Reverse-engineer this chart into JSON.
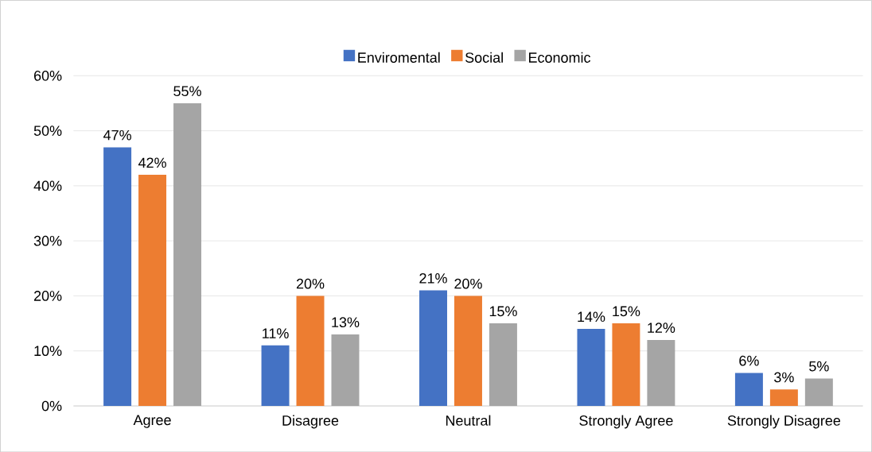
{
  "chart_data": {
    "type": "bar",
    "categories": [
      "Agree",
      "Disagree",
      "Neutral",
      "Strongly Agree",
      "Strongly Disagree"
    ],
    "series": [
      {
        "name": "Enviromental",
        "color": "#4472c4",
        "values": [
          47,
          11,
          21,
          14,
          6
        ],
        "value_labels": [
          "47%",
          "11%",
          "21%",
          "14%",
          "6%"
        ]
      },
      {
        "name": "Social",
        "color": "#ed7d31",
        "values": [
          42,
          20,
          20,
          15,
          3
        ],
        "value_labels": [
          "42%",
          "20%",
          "20%",
          "15%",
          "3%"
        ]
      },
      {
        "name": "Economic",
        "color": "#a5a5a5",
        "values": [
          55,
          13,
          15,
          12,
          5
        ],
        "value_labels": [
          "55%",
          "13%",
          "15%",
          "12%",
          "5%"
        ]
      }
    ],
    "ylim": [
      0,
      60
    ],
    "yticks": [
      {
        "value": 0,
        "label": "0%"
      },
      {
        "value": 10,
        "label": "10%"
      },
      {
        "value": 20,
        "label": "20%"
      },
      {
        "value": 30,
        "label": "30%"
      },
      {
        "value": 40,
        "label": "40%"
      },
      {
        "value": 50,
        "label": "50%"
      },
      {
        "value": 60,
        "label": "60%"
      }
    ],
    "grid": "y",
    "legend": "top"
  }
}
